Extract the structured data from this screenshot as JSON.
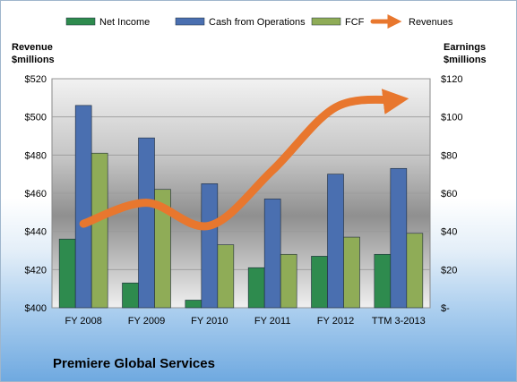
{
  "company": "Premiere Global Services",
  "colors": {
    "net_income": "#2e8b4e",
    "cash_from_operations": "#4a6fb0",
    "fcf": "#8fac57",
    "revenues": "#e8772e"
  },
  "chart_data": {
    "type": "bar",
    "categories": [
      "FY 2008",
      "FY 2009",
      "FY 2010",
      "FY 2011",
      "FY 2012",
      "TTM 3-2013"
    ],
    "series": [
      {
        "name": "Net Income",
        "axis": "right",
        "type": "bar",
        "values": [
          36,
          13,
          4,
          21,
          27,
          28
        ]
      },
      {
        "name": "Cash from Operations",
        "axis": "right",
        "type": "bar",
        "values": [
          106,
          89,
          65,
          57,
          70,
          73
        ]
      },
      {
        "name": "FCF",
        "axis": "right",
        "type": "bar",
        "values": [
          81,
          62,
          33,
          28,
          37,
          39
        ]
      },
      {
        "name": "Revenues",
        "axis": "left",
        "type": "line",
        "values": [
          444,
          455,
          443,
          472,
          505,
          509
        ]
      }
    ],
    "ylabel_left": [
      "Revenue",
      "$millions"
    ],
    "ylabel_right": [
      "Earnings",
      "$millions"
    ],
    "ylim_left": [
      400,
      520
    ],
    "ylim_right": [
      0,
      120
    ],
    "left_ticks": [
      "$400",
      "$420",
      "$440",
      "$460",
      "$480",
      "$500",
      "$520"
    ],
    "right_ticks": [
      "$-",
      "$20",
      "$40",
      "$60",
      "$80",
      "$100",
      "$120"
    ],
    "legend_position": "top",
    "grid": true
  }
}
